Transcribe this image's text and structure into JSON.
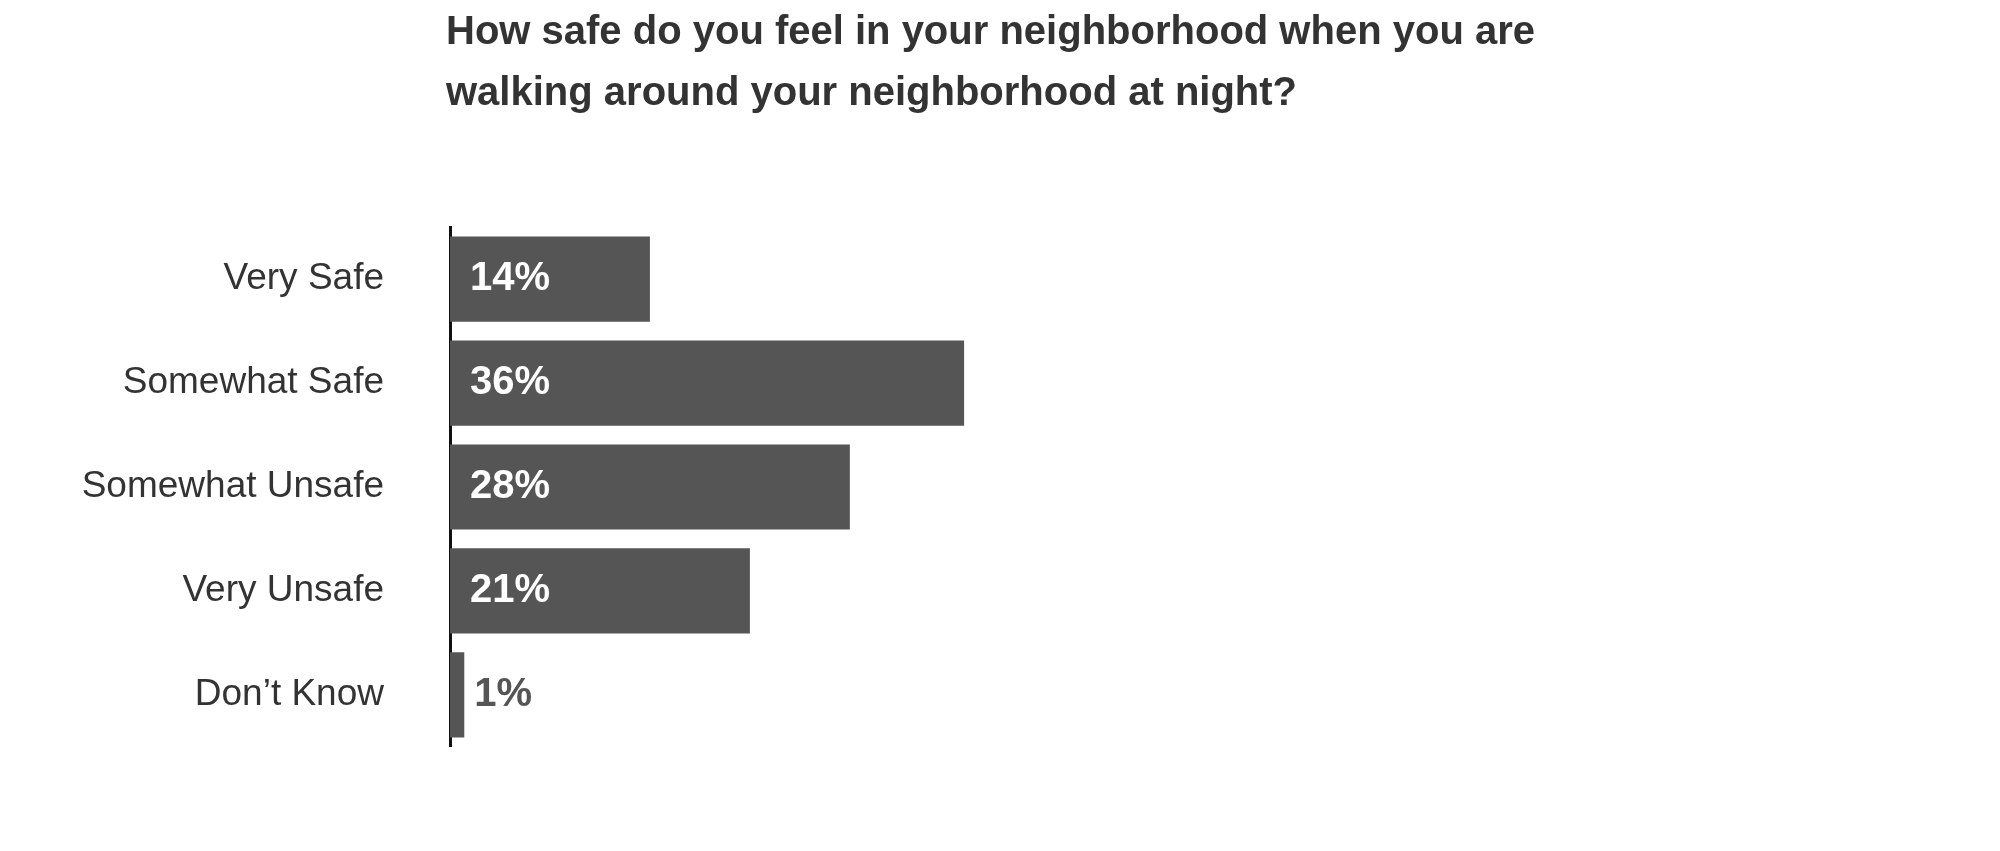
{
  "chart_data": {
    "type": "bar",
    "orientation": "horizontal",
    "title": "How safe do you feel in your neighborhood when you are walking around your neighborhood at night?",
    "categories": [
      "Very Safe",
      "Somewhat Safe",
      "Somewhat Unsafe",
      "Very Unsafe",
      "Don’t Know"
    ],
    "values": [
      14,
      36,
      28,
      21,
      1
    ],
    "value_labels": [
      "14%",
      "36%",
      "28%",
      "21%",
      "1%"
    ],
    "color": "#555555",
    "legend": false
  }
}
